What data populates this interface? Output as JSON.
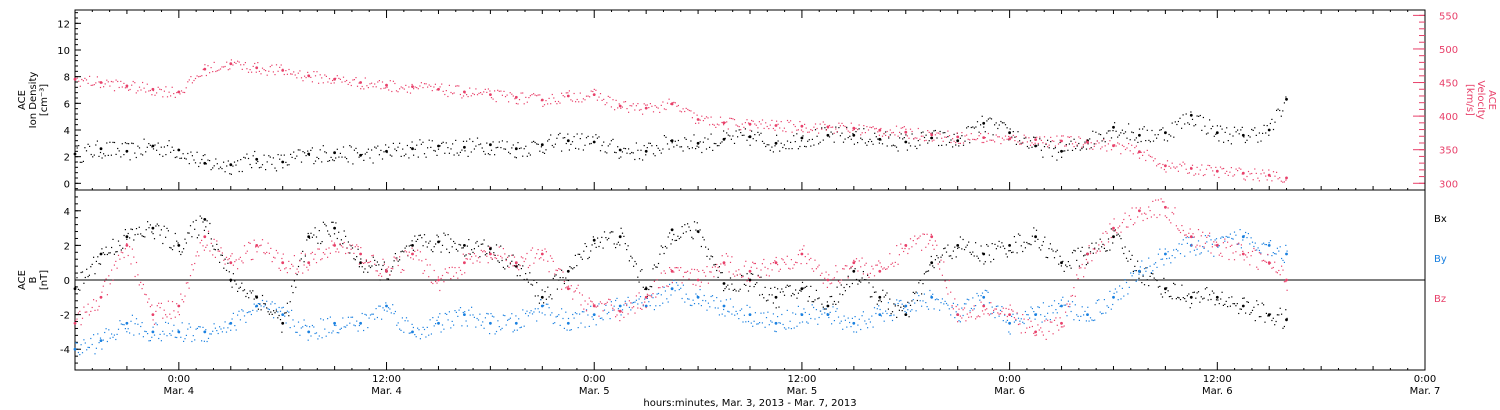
{
  "colors": {
    "density": "#000000",
    "velocity": "#e8406a",
    "bx": "#000000",
    "by": "#1a80e0",
    "bz": "#e8406a",
    "axis": "#000000"
  },
  "chart_data": [
    {
      "type": "scatter",
      "panel": "top",
      "x_unit": "hours since Mar. 3 00:00",
      "xlim": [
        18,
        96
      ],
      "grid": false,
      "left_axis": {
        "title_lines": [
          "ACE",
          "Ion Density",
          "[cm⁻³]"
        ],
        "ylim": [
          -0.5,
          13
        ],
        "ticks": [
          0,
          2,
          4,
          6,
          8,
          10,
          12
        ],
        "tick_labels": [
          "0",
          "2",
          "4",
          "6",
          "8",
          "10",
          "12"
        ]
      },
      "right_axis": {
        "title_lines": [
          "ACE",
          "Velocity",
          "[km/s]"
        ],
        "ylim": [
          290,
          558
        ],
        "ticks": [
          300,
          350,
          400,
          450,
          500,
          550
        ],
        "tick_labels": [
          "300",
          "350",
          "400",
          "450",
          "500",
          "550"
        ]
      },
      "series": [
        {
          "key": "density",
          "axis": "left",
          "x": [
            18.0,
            19.5,
            21.0,
            22.5,
            24.0,
            25.5,
            27.0,
            28.5,
            30.0,
            31.5,
            33.0,
            34.5,
            36.0,
            37.5,
            39.0,
            40.5,
            42.0,
            43.5,
            45.0,
            46.5,
            48.0,
            49.5,
            51.0,
            52.5,
            54.0,
            55.5,
            57.0,
            58.5,
            60.0,
            61.5,
            63.0,
            64.5,
            66.0,
            67.5,
            69.0,
            70.5,
            72.0,
            73.5,
            75.0,
            76.5,
            78.0,
            79.5,
            81.0,
            82.5,
            84.0,
            85.5,
            87.0,
            88.0
          ],
          "y": [
            2.2,
            2.6,
            2.4,
            2.8,
            2.5,
            1.5,
            1.4,
            1.8,
            1.6,
            2.2,
            2.3,
            2.1,
            2.4,
            2.6,
            2.8,
            2.7,
            2.9,
            2.6,
            2.9,
            3.2,
            3.1,
            2.5,
            2.4,
            3.2,
            3.0,
            3.3,
            3.5,
            3.0,
            3.4,
            3.6,
            3.6,
            3.3,
            3.1,
            3.4,
            3.2,
            4.5,
            3.8,
            2.8,
            2.4,
            3.2,
            4.2,
            3.6,
            3.8,
            5.1,
            3.8,
            3.6,
            4.0,
            6.3
          ]
        },
        {
          "key": "velocity",
          "axis": "right",
          "x": [
            18.0,
            19.5,
            21.0,
            22.5,
            24.0,
            25.5,
            27.0,
            28.5,
            30.0,
            31.5,
            33.0,
            34.5,
            36.0,
            37.5,
            39.0,
            40.5,
            42.0,
            43.5,
            45.0,
            46.5,
            48.0,
            49.5,
            51.0,
            52.5,
            54.0,
            55.5,
            57.0,
            58.5,
            60.0,
            61.5,
            63.0,
            64.5,
            66.0,
            67.5,
            69.0,
            70.5,
            72.0,
            73.5,
            75.0,
            76.5,
            78.0,
            79.5,
            81.0,
            82.5,
            84.0,
            85.5,
            87.0,
            88.0
          ],
          "y": [
            455,
            450,
            445,
            440,
            436,
            470,
            478,
            472,
            468,
            460,
            455,
            450,
            446,
            444,
            440,
            436,
            432,
            428,
            424,
            430,
            432,
            415,
            412,
            418,
            395,
            390,
            388,
            386,
            385,
            384,
            382,
            379,
            376,
            372,
            369,
            368,
            366,
            365,
            363,
            361,
            356,
            347,
            326,
            322,
            318,
            315,
            312,
            308
          ]
        }
      ]
    },
    {
      "type": "scatter",
      "panel": "bottom",
      "x_unit": "hours since Mar. 3 00:00",
      "xlim": [
        18,
        96
      ],
      "grid": false,
      "zero_line": true,
      "left_axis": {
        "title_lines": [
          "ACE",
          "B",
          "[nT]"
        ],
        "ylim": [
          -5.2,
          5.2
        ],
        "ticks": [
          -4,
          -2,
          0,
          2,
          4
        ],
        "tick_labels": [
          "-4",
          "-2",
          "0",
          "2",
          "4"
        ]
      },
      "legend": [
        "Bx",
        "By",
        "Bz"
      ],
      "legend_position": "right",
      "series": [
        {
          "key": "bx",
          "name": "Bx",
          "x": [
            18.0,
            19.5,
            21.0,
            22.5,
            24.0,
            25.5,
            27.0,
            28.5,
            30.0,
            31.5,
            33.0,
            34.5,
            36.0,
            37.5,
            39.0,
            40.5,
            42.0,
            43.5,
            45.0,
            46.5,
            48.0,
            49.5,
            51.0,
            52.5,
            54.0,
            55.5,
            57.0,
            58.5,
            60.0,
            61.5,
            63.0,
            64.5,
            66.0,
            67.5,
            69.0,
            70.5,
            72.0,
            73.5,
            75.0,
            76.5,
            78.0,
            79.5,
            81.0,
            82.5,
            84.0,
            85.5,
            87.0,
            88.0
          ],
          "y": [
            -0.5,
            1.5,
            2.5,
            3.0,
            2.0,
            3.5,
            0.0,
            -1.0,
            -2.5,
            2.5,
            3.0,
            1.0,
            0.5,
            2.0,
            2.2,
            2.0,
            1.8,
            0.8,
            -1.0,
            0.5,
            2.3,
            2.5,
            -0.5,
            2.9,
            2.8,
            -0.2,
            0.0,
            -1.0,
            -0.5,
            -1.5,
            0.5,
            -1.0,
            -2.0,
            1.0,
            2.0,
            1.5,
            2.0,
            2.5,
            1.0,
            1.5,
            2.5,
            0.5,
            -0.5,
            -1.0,
            -1.0,
            -1.5,
            -2.0,
            -2.3
          ]
        },
        {
          "key": "by",
          "name": "By",
          "x": [
            18.0,
            19.5,
            21.0,
            22.5,
            24.0,
            25.5,
            27.0,
            28.5,
            30.0,
            31.5,
            33.0,
            34.5,
            36.0,
            37.5,
            39.0,
            40.5,
            42.0,
            43.5,
            45.0,
            46.5,
            48.0,
            49.5,
            51.0,
            52.5,
            54.0,
            55.5,
            57.0,
            58.5,
            60.0,
            61.5,
            63.0,
            64.5,
            66.0,
            67.5,
            69.0,
            70.5,
            72.0,
            73.5,
            75.0,
            76.5,
            78.0,
            79.5,
            81.0,
            82.5,
            84.0,
            85.5,
            87.0,
            88.0
          ],
          "y": [
            -4.0,
            -3.5,
            -2.5,
            -3.0,
            -3.0,
            -3.0,
            -2.5,
            -1.5,
            -2.0,
            -3.0,
            -2.5,
            -2.5,
            -1.5,
            -3.0,
            -2.5,
            -2.0,
            -2.5,
            -2.5,
            -1.5,
            -2.5,
            -2.0,
            -1.5,
            -1.5,
            -0.5,
            -1.0,
            -1.5,
            -2.0,
            -2.5,
            -2.0,
            -2.0,
            -2.5,
            -2.0,
            -1.5,
            -1.0,
            -2.0,
            -1.0,
            -2.5,
            -2.0,
            -1.5,
            -2.0,
            -1.0,
            0.5,
            1.5,
            2.0,
            2.0,
            2.5,
            2.0,
            1.5
          ]
        },
        {
          "key": "bz",
          "name": "Bz",
          "x": [
            18.0,
            19.5,
            21.0,
            22.5,
            24.0,
            25.5,
            27.0,
            28.5,
            30.0,
            31.5,
            33.0,
            34.5,
            36.0,
            37.5,
            39.0,
            40.5,
            42.0,
            43.5,
            45.0,
            46.5,
            48.0,
            49.5,
            51.0,
            52.5,
            54.0,
            55.5,
            57.0,
            58.5,
            60.0,
            61.5,
            63.0,
            64.5,
            66.0,
            67.5,
            69.0,
            70.5,
            72.0,
            73.5,
            75.0,
            76.5,
            78.0,
            79.5,
            81.0,
            82.5,
            84.0,
            85.5,
            87.0,
            88.0
          ],
          "y": [
            -2.5,
            -1.0,
            2.0,
            -2.0,
            -1.5,
            2.5,
            1.0,
            2.0,
            1.0,
            1.0,
            2.0,
            1.5,
            0.5,
            1.5,
            0.0,
            1.0,
            1.5,
            1.0,
            1.5,
            -0.5,
            -1.5,
            -1.8,
            -1.0,
            0.5,
            0.0,
            1.0,
            0.5,
            1.0,
            1.5,
            0.0,
            1.0,
            0.5,
            2.0,
            2.5,
            -2.0,
            -1.5,
            -2.0,
            -3.0,
            -2.5,
            1.5,
            3.0,
            4.0,
            4.2,
            2.5,
            2.0,
            1.5,
            1.0,
            0.0
          ]
        }
      ]
    }
  ],
  "x_axis": {
    "ticks": [
      {
        "hour": 24,
        "time": "0:00",
        "date": "Mar. 4"
      },
      {
        "hour": 36,
        "time": "12:00",
        "date": "Mar. 4"
      },
      {
        "hour": 48,
        "time": "0:00",
        "date": "Mar. 5"
      },
      {
        "hour": 60,
        "time": "12:00",
        "date": "Mar. 5"
      },
      {
        "hour": 72,
        "time": "0:00",
        "date": "Mar. 6"
      },
      {
        "hour": 84,
        "time": "12:00",
        "date": "Mar. 6"
      },
      {
        "hour": 96,
        "time": "0:00",
        "date": "Mar. 7"
      }
    ],
    "caption": "hours:minutes, Mar. 3, 2013 - Mar. 7, 2013"
  }
}
